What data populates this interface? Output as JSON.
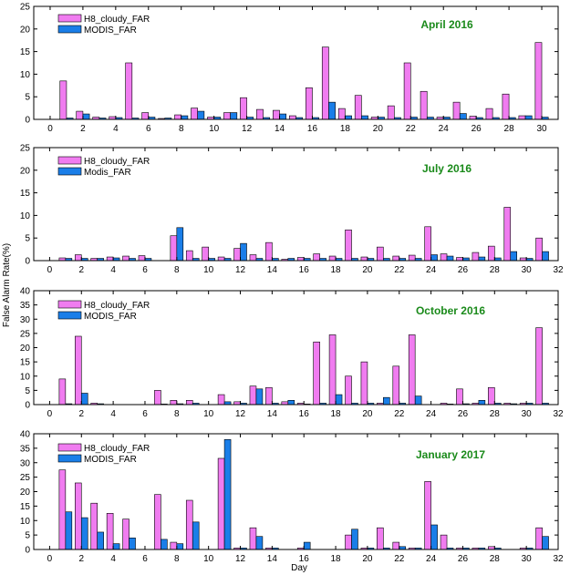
{
  "figure": {
    "ylabel": "False Alarm Rate(%)",
    "xlabel": "Day"
  },
  "colors": {
    "h8": "#f07cf0",
    "modis": "#1a7ee8",
    "title": "#1a8a1a",
    "stroke": "#000000"
  },
  "chart_data": [
    {
      "type": "bar",
      "title": "April 2016",
      "xlim": [
        -1,
        31
      ],
      "ylim": [
        0,
        25
      ],
      "xticks": [
        0,
        2,
        4,
        6,
        8,
        10,
        12,
        14,
        16,
        18,
        20,
        22,
        24,
        26,
        28,
        30
      ],
      "yticks": [
        0,
        5,
        10,
        15,
        20,
        25
      ],
      "bar_width": 0.4,
      "legend": [
        "H8_cloudy_FAR",
        "MODIS_FAR"
      ],
      "x": [
        1,
        2,
        3,
        4,
        5,
        6,
        7,
        8,
        9,
        10,
        11,
        12,
        13,
        14,
        15,
        16,
        17,
        18,
        19,
        20,
        21,
        22,
        23,
        24,
        25,
        26,
        27,
        28,
        29,
        30
      ],
      "series": [
        {
          "name": "H8_cloudy_FAR",
          "values": [
            8.5,
            1.8,
            0.5,
            0.6,
            12.5,
            1.5,
            0.2,
            1.0,
            2.5,
            0.5,
            1.5,
            4.8,
            2.2,
            2.0,
            0.8,
            7.0,
            16.0,
            2.4,
            5.3,
            0.5,
            3.0,
            12.5,
            6.2,
            0.5,
            3.8,
            0.7,
            2.4,
            5.6,
            0.8,
            17.0
          ]
        },
        {
          "name": "MODIS_FAR",
          "values": [
            0.3,
            1.2,
            0.3,
            0.4,
            0.3,
            0.5,
            0.3,
            0.8,
            1.8,
            0.5,
            1.5,
            0.5,
            0.4,
            1.2,
            0.4,
            0.4,
            3.8,
            0.8,
            0.8,
            0.5,
            0.4,
            0.5,
            0.5,
            0.5,
            1.3,
            0.4,
            0.4,
            0.4,
            0.8,
            0.5
          ]
        }
      ]
    },
    {
      "type": "bar",
      "title": "July 2016",
      "xlim": [
        -1,
        32
      ],
      "ylim": [
        0,
        25
      ],
      "xticks": [
        0,
        2,
        4,
        6,
        8,
        10,
        12,
        14,
        16,
        18,
        20,
        22,
        24,
        26,
        28,
        30,
        32
      ],
      "yticks": [
        0,
        5,
        10,
        15,
        20,
        25
      ],
      "bar_width": 0.4,
      "legend": [
        "H8_cloudy_FAR",
        "Modis_FAR"
      ],
      "x": [
        1,
        2,
        3,
        4,
        5,
        6,
        7,
        8,
        9,
        10,
        11,
        12,
        13,
        14,
        15,
        16,
        17,
        18,
        19,
        20,
        21,
        22,
        23,
        24,
        25,
        26,
        27,
        28,
        29,
        30,
        31
      ],
      "series": [
        {
          "name": "H8_cloudy_FAR",
          "values": [
            0.6,
            1.3,
            0.5,
            0.8,
            1.0,
            1.1,
            0,
            5.5,
            2.2,
            3.0,
            0.8,
            2.7,
            1.3,
            4.0,
            0.3,
            0.7,
            1.5,
            1.0,
            6.8,
            0.8,
            3.0,
            1.0,
            1.2,
            7.5,
            1.5,
            0.7,
            1.8,
            3.2,
            11.8,
            0.6,
            5.0
          ]
        },
        {
          "name": "Modis_FAR",
          "values": [
            0.5,
            0.5,
            0.5,
            0.6,
            0.5,
            0.5,
            0,
            7.3,
            0.5,
            0.5,
            0.5,
            3.8,
            0.5,
            0.5,
            0.5,
            0.5,
            0.5,
            0.5,
            0.5,
            0.5,
            0.5,
            0.5,
            0.5,
            1.3,
            1.0,
            0.6,
            0.8,
            0.6,
            2.0,
            0.5,
            2.0
          ]
        }
      ]
    },
    {
      "type": "bar",
      "title": "October 2016",
      "xlim": [
        -1,
        32
      ],
      "ylim": [
        0,
        40
      ],
      "xticks": [
        0,
        2,
        4,
        6,
        8,
        10,
        12,
        14,
        16,
        18,
        20,
        22,
        24,
        26,
        28,
        30,
        32
      ],
      "yticks": [
        0,
        5,
        10,
        15,
        20,
        25,
        30,
        35,
        40
      ],
      "bar_width": 0.4,
      "legend": [
        "H8_cloudy_FAR",
        "MODIS_FAR"
      ],
      "x": [
        1,
        2,
        3,
        4,
        5,
        6,
        7,
        8,
        9,
        10,
        11,
        12,
        13,
        14,
        15,
        16,
        17,
        18,
        19,
        20,
        21,
        22,
        23,
        24,
        25,
        26,
        27,
        28,
        29,
        30,
        31
      ],
      "series": [
        {
          "name": "H8_cloudy_FAR",
          "values": [
            9.0,
            24.0,
            0.5,
            0,
            0,
            0,
            5.0,
            1.5,
            1.5,
            0,
            3.5,
            1.0,
            6.5,
            6.0,
            1.0,
            0.5,
            22.0,
            24.5,
            10.0,
            15.0,
            0.5,
            13.5,
            24.5,
            0,
            0.5,
            5.5,
            0.5,
            6.0,
            0.5,
            0.5,
            27.0
          ]
        },
        {
          "name": "MODIS_FAR",
          "values": [
            0.3,
            4.0,
            0.3,
            0,
            0,
            0,
            0.2,
            0.3,
            0.5,
            0,
            1.0,
            0.5,
            5.5,
            0.5,
            1.5,
            0.2,
            0.5,
            3.5,
            0.5,
            0.5,
            2.5,
            0.5,
            3.0,
            0,
            0.2,
            0.3,
            1.5,
            0.5,
            0.3,
            0.5,
            0.5
          ]
        }
      ]
    },
    {
      "type": "bar",
      "title": "January 2017",
      "xlim": [
        -1,
        32
      ],
      "ylim": [
        0,
        40
      ],
      "xticks": [
        0,
        2,
        4,
        6,
        8,
        10,
        12,
        14,
        16,
        18,
        20,
        22,
        24,
        26,
        28,
        30,
        32
      ],
      "yticks": [
        0,
        5,
        10,
        15,
        20,
        25,
        30,
        35,
        40
      ],
      "bar_width": 0.4,
      "legend": [
        "H8_cloudy_FAR",
        "MODIS_FAR"
      ],
      "x": [
        1,
        2,
        3,
        4,
        5,
        6,
        7,
        8,
        9,
        10,
        11,
        12,
        13,
        14,
        15,
        16,
        17,
        18,
        19,
        20,
        21,
        22,
        23,
        24,
        25,
        26,
        27,
        28,
        29,
        30,
        31
      ],
      "series": [
        {
          "name": "H8_cloudy_FAR",
          "values": [
            27.5,
            23.0,
            16.0,
            12.5,
            10.5,
            0,
            19.0,
            2.5,
            17.0,
            0,
            31.5,
            0.5,
            7.5,
            0.5,
            0,
            0.5,
            0,
            0,
            5.0,
            0.5,
            7.5,
            2.5,
            0.5,
            23.5,
            5.0,
            0.5,
            0.5,
            1.0,
            0,
            0.5,
            7.5
          ]
        },
        {
          "name": "MODIS_FAR",
          "values": [
            13.0,
            11.0,
            6.0,
            2.0,
            4.0,
            0,
            3.5,
            2.0,
            9.5,
            0,
            38.0,
            0.5,
            4.5,
            0.5,
            0,
            2.5,
            0,
            0,
            7.0,
            0.5,
            0.5,
            1.0,
            0.5,
            8.5,
            0.5,
            0.5,
            0.5,
            0.5,
            0,
            0.5,
            4.5
          ]
        }
      ]
    }
  ]
}
